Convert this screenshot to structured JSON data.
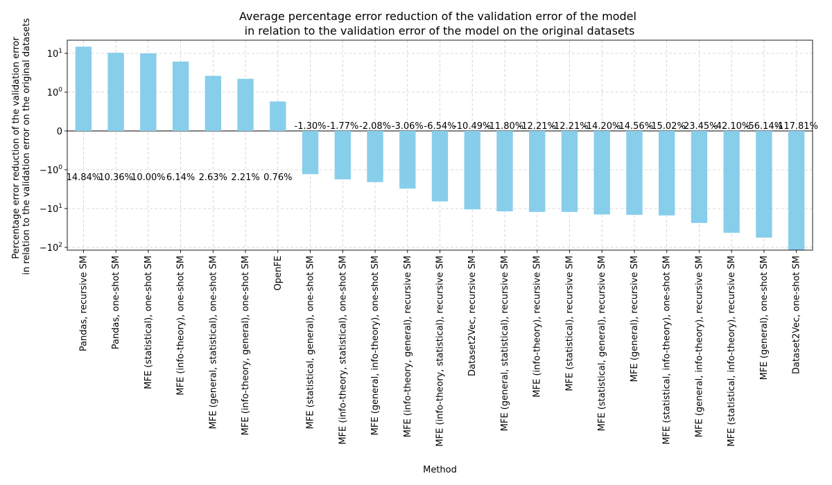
{
  "chart_data": {
    "type": "bar",
    "title": "Average percentage error reduction of the validation error of the model\nin relation to the validation error of the model on the original datasets",
    "xlabel": "Method",
    "ylabel": "Percentage error reduction of the validation error\nin relation to the validation error on the original datasets",
    "yscale": "symlog",
    "ylim": [
      -118,
      20
    ],
    "yticks": [
      {
        "value": 10,
        "label": "10^1"
      },
      {
        "value": 1,
        "label": "10^0"
      },
      {
        "value": 0,
        "label": "0"
      },
      {
        "value": -1,
        "label": "−10^0"
      },
      {
        "value": -10,
        "label": "−10^1"
      },
      {
        "value": -100,
        "label": "−10^2"
      }
    ],
    "grid": true,
    "bar_color": "#87ceeb",
    "categories": [
      "Pandas, recursive SM",
      "Pandas, one-shot SM",
      "MFE (statistical), one-shot SM",
      "MFE (info-theory), one-shot SM",
      "MFE (general, statistical), one-shot SM",
      "MFE (info-theory, general), one-shot SM",
      "OpenFE",
      "MFE (statistical, general), one-shot SM",
      "MFE (info-theory, statistical), one-shot SM",
      "MFE (general, info-theory), one-shot SM",
      "MFE (info-theory, general), recursive SM",
      "MFE (info-theory, statistical), recursive SM",
      "Dataset2Vec, recursive SM",
      "MFE (general, statistical), recursive SM",
      "MFE (info-theory), recursive SM",
      "MFE (statistical), recursive SM",
      "MFE (statistical, general), recursive SM",
      "MFE (general), recursive SM",
      "MFE (statistical, info-theory), one-shot SM",
      "MFE (general, info-theory), recursive SM",
      "MFE (statistical, info-theory), recursive SM",
      "MFE (general), one-shot SM",
      "Dataset2Vec, one-shot SM"
    ],
    "values": [
      14.84,
      10.36,
      10.0,
      6.14,
      2.63,
      2.21,
      0.76,
      -1.3,
      -1.77,
      -2.08,
      -3.06,
      -6.54,
      -10.49,
      -11.8,
      -12.21,
      -12.21,
      -14.2,
      -14.56,
      -15.02,
      -23.45,
      -42.1,
      -56.14,
      -117.81
    ],
    "data_labels": [
      "14.84%",
      "10.36%",
      "10.00%",
      "6.14%",
      "2.63%",
      "2.21%",
      "0.76%",
      "-1.30%",
      "-1.77%",
      "-2.08%",
      "-3.06%",
      "-6.54%",
      "-10.49%",
      "-11.80%",
      "-12.21%",
      "-12.21%",
      "-14.20%",
      "-14.56%",
      "-15.02%",
      "-23.45%",
      "-42.10%",
      "-56.14%",
      "-117.81%"
    ]
  }
}
